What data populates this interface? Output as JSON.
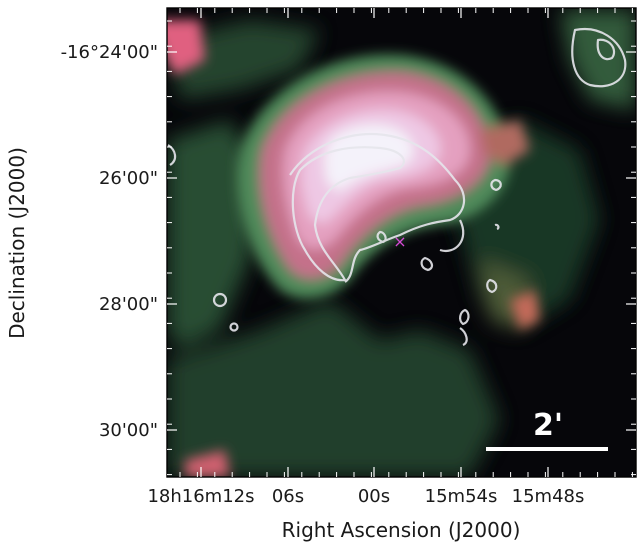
{
  "axes": {
    "xlabel": "Right Ascension (J2000)",
    "ylabel": "Declination (J2000)",
    "x_ticks": [
      "18h16m12s",
      "06s",
      "00s",
      "15m54s",
      "15m48s"
    ],
    "y_ticks": [
      "-16°24'00\"",
      "26'00\"",
      "28'00\"",
      "30'00\""
    ]
  },
  "scale_bar": {
    "label": "2'"
  },
  "colors": {
    "background": "#06060a",
    "marker": "#d64ad6",
    "contour": "#e6e6ec",
    "scale_bar": "#ffffff"
  },
  "marker": {
    "symbol": "×"
  }
}
